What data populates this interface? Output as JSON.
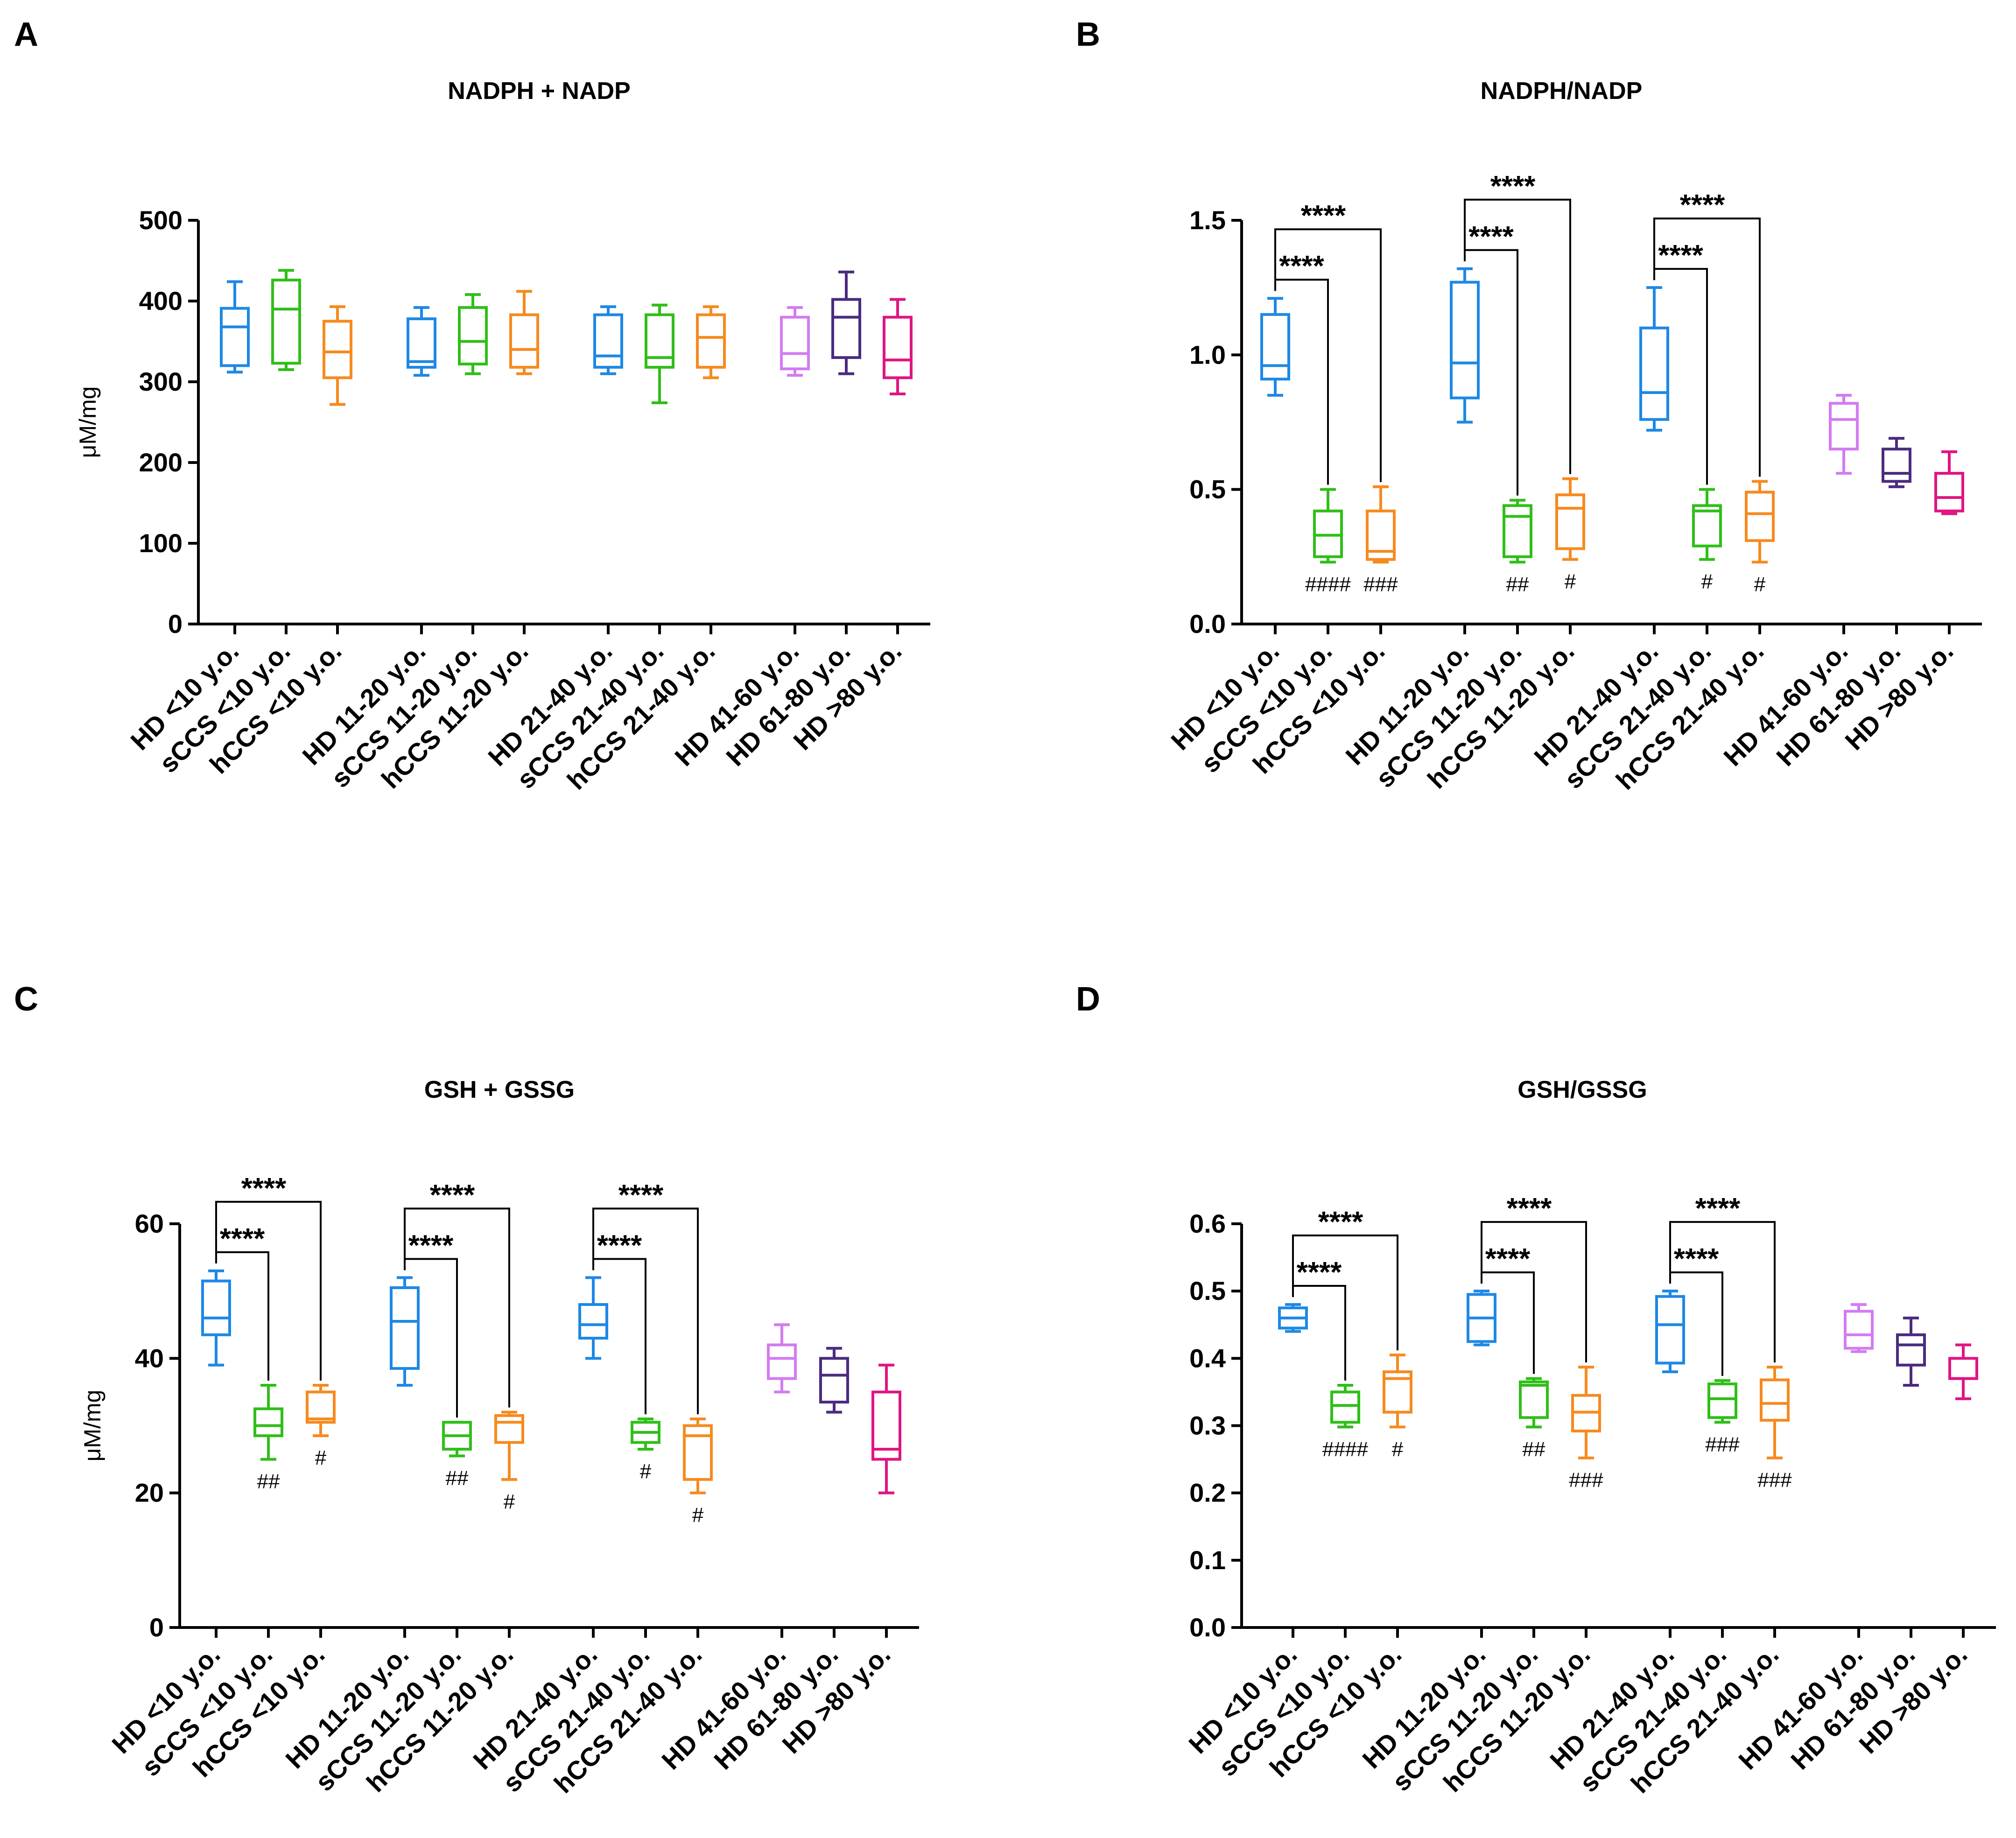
{
  "figure": {
    "colors": {
      "axis": "#000000",
      "bracket": "#000000",
      "palette": [
        "#1E88E5",
        "#2FBF18",
        "#F68A1F",
        "#D37BF2",
        "#4B2B7F",
        "#E01583"
      ]
    }
  },
  "chart_data": [
    {
      "panel": "A",
      "type": "box",
      "title": "NADPH + NADP",
      "ylabel": "μM/mg",
      "xlabel": "",
      "ylim": [
        0,
        500
      ],
      "yticks": [
        "0",
        "100",
        "200",
        "300",
        "400",
        "500"
      ],
      "categories": [
        "HD <10 y.o.",
        "sCCS <10 y.o.",
        "hCCS <10 y.o.",
        "HD 11-20 y.o.",
        "sCCS 11-20 y.o.",
        "hCCS 11-20 y.o.",
        "HD 21-40 y.o.",
        "sCCS 21-40 y.o.",
        "hCCS 21-40 y.o.",
        "HD 41-60 y.o.",
        "HD 61-80 y.o.",
        "HD >80 y.o."
      ],
      "series": [
        {
          "name": "HD <10 y.o.",
          "color": "#1E88E5",
          "min": 312,
          "q1": 320,
          "median": 368,
          "q3": 391,
          "max": 424
        },
        {
          "name": "sCCS <10 y.o.",
          "color": "#2FBF18",
          "min": 315,
          "q1": 323,
          "median": 390,
          "q3": 426,
          "max": 438
        },
        {
          "name": "hCCS <10 y.o.",
          "color": "#F68A1F",
          "min": 272,
          "q1": 305,
          "median": 337,
          "q3": 375,
          "max": 393
        },
        {
          "name": "HD 11-20 y.o.",
          "color": "#1E88E5",
          "min": 308,
          "q1": 318,
          "median": 325,
          "q3": 378,
          "max": 392
        },
        {
          "name": "sCCS 11-20 y.o.",
          "color": "#2FBF18",
          "min": 310,
          "q1": 322,
          "median": 350,
          "q3": 392,
          "max": 408
        },
        {
          "name": "hCCS 11-20 y.o.",
          "color": "#F68A1F",
          "min": 310,
          "q1": 318,
          "median": 340,
          "q3": 383,
          "max": 412
        },
        {
          "name": "HD 21-40 y.o.",
          "color": "#1E88E5",
          "min": 310,
          "q1": 318,
          "median": 332,
          "q3": 383,
          "max": 393
        },
        {
          "name": "sCCS 21-40 y.o.",
          "color": "#2FBF18",
          "min": 274,
          "q1": 318,
          "median": 330,
          "q3": 383,
          "max": 395
        },
        {
          "name": "hCCS 21-40 y.o.",
          "color": "#F68A1F",
          "min": 305,
          "q1": 318,
          "median": 355,
          "q3": 383,
          "max": 393
        },
        {
          "name": "HD 41-60 y.o.",
          "color": "#D37BF2",
          "min": 308,
          "q1": 316,
          "median": 335,
          "q3": 380,
          "max": 392
        },
        {
          "name": "HD 61-80 y.o.",
          "color": "#4B2B7F",
          "min": 310,
          "q1": 330,
          "median": 380,
          "q3": 402,
          "max": 436
        },
        {
          "name": "HD >80 y.o.",
          "color": "#E01583",
          "min": 285,
          "q1": 305,
          "median": 327,
          "q3": 380,
          "max": 402
        }
      ],
      "comparisons": [],
      "hash_labels": []
    },
    {
      "panel": "B",
      "type": "box",
      "title": "NADPH/NADP",
      "ylabel": "",
      "xlabel": "",
      "ylim": [
        0,
        1.5
      ],
      "yticks": [
        "0.0",
        "0.5",
        "1.0",
        "1.5"
      ],
      "categories": [
        "HD <10 y.o.",
        "sCCS <10 y.o.",
        "hCCS <10 y.o.",
        "HD 11-20 y.o.",
        "sCCS 11-20 y.o.",
        "hCCS 11-20 y.o.",
        "HD 21-40 y.o.",
        "sCCS 21-40 y.o.",
        "hCCS 21-40 y.o.",
        "HD 41-60 y.o.",
        "HD 61-80 y.o.",
        "HD >80 y.o."
      ],
      "series": [
        {
          "name": "HD <10 y.o.",
          "color": "#1E88E5",
          "min": 0.85,
          "q1": 0.91,
          "median": 0.96,
          "q3": 1.15,
          "max": 1.21
        },
        {
          "name": "sCCS <10 y.o.",
          "color": "#2FBF18",
          "min": 0.23,
          "q1": 0.25,
          "median": 0.33,
          "q3": 0.42,
          "max": 0.5
        },
        {
          "name": "hCCS <10 y.o.",
          "color": "#F68A1F",
          "min": 0.23,
          "q1": 0.24,
          "median": 0.27,
          "q3": 0.42,
          "max": 0.51
        },
        {
          "name": "HD 11-20 y.o.",
          "color": "#1E88E5",
          "min": 0.75,
          "q1": 0.84,
          "median": 0.97,
          "q3": 1.27,
          "max": 1.32
        },
        {
          "name": "sCCS 11-20 y.o.",
          "color": "#2FBF18",
          "min": 0.23,
          "q1": 0.25,
          "median": 0.4,
          "q3": 0.44,
          "max": 0.46
        },
        {
          "name": "hCCS 11-20 y.o.",
          "color": "#F68A1F",
          "min": 0.24,
          "q1": 0.28,
          "median": 0.43,
          "q3": 0.48,
          "max": 0.54
        },
        {
          "name": "HD 21-40 y.o.",
          "color": "#1E88E5",
          "min": 0.72,
          "q1": 0.76,
          "median": 0.86,
          "q3": 1.1,
          "max": 1.25
        },
        {
          "name": "sCCS 21-40 y.o.",
          "color": "#2FBF18",
          "min": 0.24,
          "q1": 0.29,
          "median": 0.42,
          "q3": 0.44,
          "max": 0.5
        },
        {
          "name": "hCCS 21-40 y.o.",
          "color": "#F68A1F",
          "min": 0.23,
          "q1": 0.31,
          "median": 0.41,
          "q3": 0.49,
          "max": 0.53
        },
        {
          "name": "HD 41-60 y.o.",
          "color": "#D37BF2",
          "min": 0.56,
          "q1": 0.65,
          "median": 0.76,
          "q3": 0.82,
          "max": 0.85
        },
        {
          "name": "HD 61-80 y.o.",
          "color": "#4B2B7F",
          "min": 0.51,
          "q1": 0.53,
          "median": 0.56,
          "q3": 0.65,
          "max": 0.69
        },
        {
          "name": "HD >80 y.o.",
          "color": "#E01583",
          "min": 0.41,
          "q1": 0.42,
          "median": 0.47,
          "q3": 0.56,
          "max": 0.64
        }
      ],
      "comparisons": [
        {
          "from": 0,
          "to": 1,
          "label": "****",
          "level": 1
        },
        {
          "from": 0,
          "to": 2,
          "label": "****",
          "level": 2
        },
        {
          "from": 3,
          "to": 4,
          "label": "****",
          "level": 1
        },
        {
          "from": 3,
          "to": 5,
          "label": "****",
          "level": 2
        },
        {
          "from": 6,
          "to": 7,
          "label": "****",
          "level": 1
        },
        {
          "from": 6,
          "to": 8,
          "label": "****",
          "level": 2
        }
      ],
      "hash_labels": [
        {
          "box": 1,
          "label": "####"
        },
        {
          "box": 2,
          "label": "###"
        },
        {
          "box": 4,
          "label": "##"
        },
        {
          "box": 5,
          "label": "#"
        },
        {
          "box": 7,
          "label": "#"
        },
        {
          "box": 8,
          "label": "#"
        }
      ]
    },
    {
      "panel": "C",
      "type": "box",
      "title": "GSH + GSSG",
      "ylabel": "μM/mg",
      "xlabel": "",
      "ylim": [
        0,
        60
      ],
      "yticks": [
        "0",
        "20",
        "40",
        "60"
      ],
      "categories": [
        "HD <10 y.o.",
        "sCCS <10 y.o.",
        "hCCS <10 y.o.",
        "HD 11-20 y.o.",
        "sCCS 11-20 y.o.",
        "hCCS 11-20 y.o.",
        "HD 21-40 y.o.",
        "sCCS 21-40 y.o.",
        "hCCS 21-40 y.o.",
        "HD 41-60 y.o.",
        "HD 61-80 y.o.",
        "HD >80 y.o."
      ],
      "series": [
        {
          "name": "HD <10 y.o.",
          "color": "#1E88E5",
          "min": 39,
          "q1": 43.5,
          "median": 46,
          "q3": 51.5,
          "max": 53
        },
        {
          "name": "sCCS <10 y.o.",
          "color": "#2FBF18",
          "min": 25,
          "q1": 28.5,
          "median": 30,
          "q3": 32.5,
          "max": 36
        },
        {
          "name": "hCCS <10 y.o.",
          "color": "#F68A1F",
          "min": 28.5,
          "q1": 30.5,
          "median": 31,
          "q3": 35,
          "max": 36
        },
        {
          "name": "HD 11-20 y.o.",
          "color": "#1E88E5",
          "min": 36,
          "q1": 38.5,
          "median": 45.5,
          "q3": 50.5,
          "max": 52
        },
        {
          "name": "sCCS 11-20 y.o.",
          "color": "#2FBF18",
          "min": 25.5,
          "q1": 26.5,
          "median": 28.5,
          "q3": 30.5,
          "max": 30.5
        },
        {
          "name": "hCCS 11-20 y.o.",
          "color": "#F68A1F",
          "min": 22,
          "q1": 27.5,
          "median": 30.5,
          "q3": 31.5,
          "max": 32
        },
        {
          "name": "HD 21-40 y.o.",
          "color": "#1E88E5",
          "min": 40,
          "q1": 43,
          "median": 45,
          "q3": 48,
          "max": 52
        },
        {
          "name": "sCCS 21-40 y.o.",
          "color": "#2FBF18",
          "min": 26.5,
          "q1": 27.5,
          "median": 29,
          "q3": 30.5,
          "max": 31
        },
        {
          "name": "hCCS 21-40 y.o.",
          "color": "#F68A1F",
          "min": 20,
          "q1": 22,
          "median": 28.5,
          "q3": 30,
          "max": 31
        },
        {
          "name": "HD 41-60 y.o.",
          "color": "#D37BF2",
          "min": 35,
          "q1": 37,
          "median": 40,
          "q3": 42,
          "max": 45
        },
        {
          "name": "HD 61-80 y.o.",
          "color": "#4B2B7F",
          "min": 32,
          "q1": 33.5,
          "median": 37.5,
          "q3": 40,
          "max": 41.5
        },
        {
          "name": "HD >80 y.o.",
          "color": "#E01583",
          "min": 20,
          "q1": 25,
          "median": 26.5,
          "q3": 35,
          "max": 39
        }
      ],
      "comparisons": [
        {
          "from": 0,
          "to": 1,
          "label": "****",
          "level": 1
        },
        {
          "from": 0,
          "to": 2,
          "label": "****",
          "level": 2
        },
        {
          "from": 3,
          "to": 4,
          "label": "****",
          "level": 1
        },
        {
          "from": 3,
          "to": 5,
          "label": "****",
          "level": 2
        },
        {
          "from": 6,
          "to": 7,
          "label": "****",
          "level": 1
        },
        {
          "from": 6,
          "to": 8,
          "label": "****",
          "level": 2
        }
      ],
      "hash_labels": [
        {
          "box": 1,
          "label": "##"
        },
        {
          "box": 2,
          "label": "#"
        },
        {
          "box": 4,
          "label": "##"
        },
        {
          "box": 5,
          "label": "#"
        },
        {
          "box": 7,
          "label": "#"
        },
        {
          "box": 8,
          "label": "#"
        }
      ]
    },
    {
      "panel": "D",
      "type": "box",
      "title": "GSH/GSSG",
      "ylabel": "",
      "xlabel": "",
      "ylim": [
        0,
        0.6
      ],
      "yticks": [
        "0.0",
        "0.1",
        "0.2",
        "0.3",
        "0.4",
        "0.5",
        "0.6"
      ],
      "categories": [
        "HD <10 y.o.",
        "sCCS <10 y.o.",
        "hCCS <10 y.o.",
        "HD 11-20 y.o.",
        "sCCS 11-20 y.o.",
        "hCCS 11-20 y.o.",
        "HD 21-40 y.o.",
        "sCCS 21-40 y.o.",
        "hCCS 21-40 y.o.",
        "HD 41-60 y.o.",
        "HD 61-80 y.o.",
        "HD >80 y.o."
      ],
      "series": [
        {
          "name": "HD <10 y.o.",
          "color": "#1E88E5",
          "min": 0.44,
          "q1": 0.445,
          "median": 0.46,
          "q3": 0.475,
          "max": 0.48
        },
        {
          "name": "sCCS <10 y.o.",
          "color": "#2FBF18",
          "min": 0.298,
          "q1": 0.305,
          "median": 0.33,
          "q3": 0.35,
          "max": 0.36
        },
        {
          "name": "hCCS <10 y.o.",
          "color": "#F68A1F",
          "min": 0.298,
          "q1": 0.32,
          "median": 0.37,
          "q3": 0.38,
          "max": 0.405
        },
        {
          "name": "HD 11-20 y.o.",
          "color": "#1E88E5",
          "min": 0.42,
          "q1": 0.425,
          "median": 0.46,
          "q3": 0.495,
          "max": 0.5
        },
        {
          "name": "sCCS 11-20 y.o.",
          "color": "#2FBF18",
          "min": 0.298,
          "q1": 0.312,
          "median": 0.36,
          "q3": 0.365,
          "max": 0.37
        },
        {
          "name": "hCCS 11-20 y.o.",
          "color": "#F68A1F",
          "min": 0.252,
          "q1": 0.292,
          "median": 0.32,
          "q3": 0.345,
          "max": 0.387
        },
        {
          "name": "HD 21-40 y.o.",
          "color": "#1E88E5",
          "min": 0.38,
          "q1": 0.393,
          "median": 0.45,
          "q3": 0.492,
          "max": 0.5
        },
        {
          "name": "sCCS 21-40 y.o.",
          "color": "#2FBF18",
          "min": 0.305,
          "q1": 0.312,
          "median": 0.34,
          "q3": 0.362,
          "max": 0.367
        },
        {
          "name": "hCCS 21-40 y.o.",
          "color": "#F68A1F",
          "min": 0.252,
          "q1": 0.308,
          "median": 0.333,
          "q3": 0.368,
          "max": 0.387
        },
        {
          "name": "HD 41-60 y.o.",
          "color": "#D37BF2",
          "min": 0.41,
          "q1": 0.415,
          "median": 0.435,
          "q3": 0.47,
          "max": 0.48
        },
        {
          "name": "HD 61-80 y.o.",
          "color": "#4B2B7F",
          "min": 0.36,
          "q1": 0.39,
          "median": 0.42,
          "q3": 0.435,
          "max": 0.46
        },
        {
          "name": "HD >80 y.o.",
          "color": "#E01583",
          "min": 0.34,
          "q1": 0.37,
          "median": 0.37,
          "q3": 0.4,
          "max": 0.42
        }
      ],
      "comparisons": [
        {
          "from": 0,
          "to": 1,
          "label": "****",
          "level": 1
        },
        {
          "from": 0,
          "to": 2,
          "label": "****",
          "level": 2
        },
        {
          "from": 3,
          "to": 4,
          "label": "****",
          "level": 1
        },
        {
          "from": 3,
          "to": 5,
          "label": "****",
          "level": 2
        },
        {
          "from": 6,
          "to": 7,
          "label": "****",
          "level": 1
        },
        {
          "from": 6,
          "to": 8,
          "label": "****",
          "level": 2
        }
      ],
      "hash_labels": [
        {
          "box": 1,
          "label": "####"
        },
        {
          "box": 2,
          "label": "#"
        },
        {
          "box": 4,
          "label": "##"
        },
        {
          "box": 5,
          "label": "###"
        },
        {
          "box": 7,
          "label": "###"
        },
        {
          "box": 8,
          "label": "###"
        }
      ]
    }
  ]
}
